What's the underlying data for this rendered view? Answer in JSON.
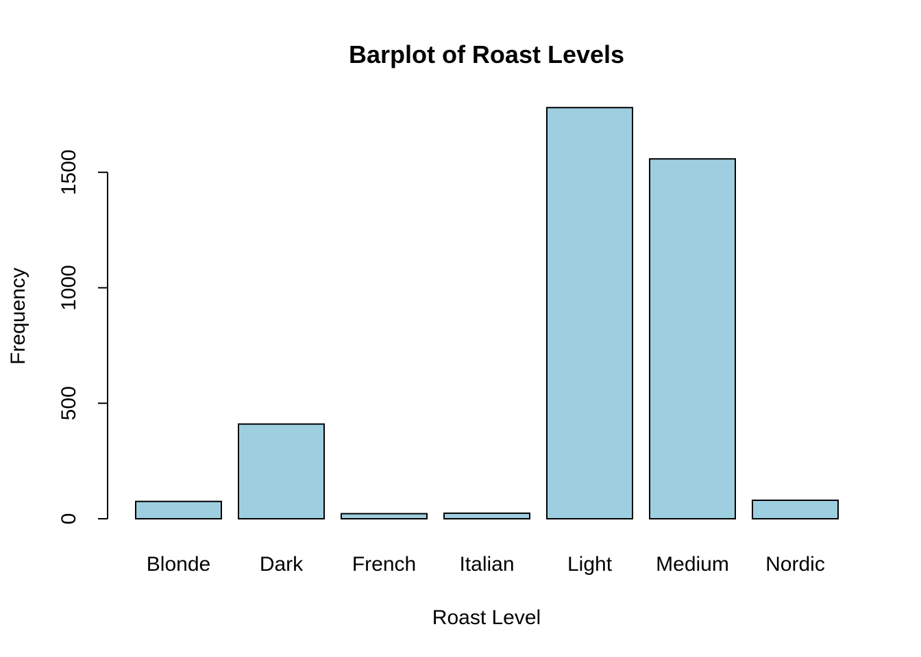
{
  "chart_data": {
    "type": "bar",
    "title": "Barplot of Roast Levels",
    "xlabel": "Roast Level",
    "ylabel": "Frequency",
    "categories": [
      "Blonde",
      "Dark",
      "French",
      "Italian",
      "Light",
      "Medium",
      "Nordic"
    ],
    "values": [
      75,
      410,
      22,
      24,
      1780,
      1558,
      80
    ],
    "yticks": [
      0,
      500,
      1000,
      1500
    ],
    "ylim": [
      0,
      1780
    ],
    "bar_color": "#9ecfe0",
    "grid": false
  }
}
